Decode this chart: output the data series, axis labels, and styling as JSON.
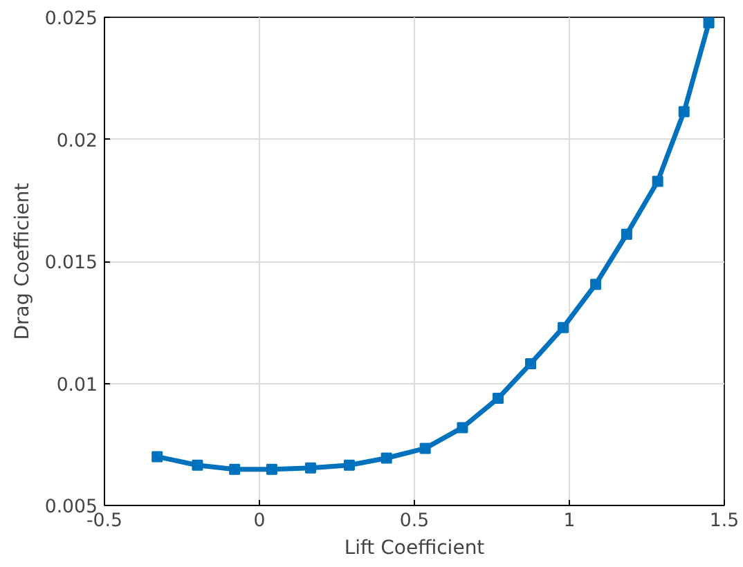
{
  "chart_data": {
    "type": "line",
    "xlabel": "Lift Coefficient",
    "ylabel": "Drag Coefficient",
    "x": [
      -0.33,
      -0.2,
      -0.08,
      0.04,
      0.165,
      0.29,
      0.41,
      0.535,
      0.655,
      0.77,
      0.875,
      0.98,
      1.085,
      1.185,
      1.285,
      1.37,
      1.45
    ],
    "series": [
      {
        "color": "#0072bd",
        "values": [
          0.007,
          0.00665,
          0.00648,
          0.00648,
          0.00654,
          0.00665,
          0.00694,
          0.00734,
          0.00819,
          0.00939,
          0.01081,
          0.01229,
          0.01406,
          0.01611,
          0.01828,
          0.02113,
          0.02477
        ]
      }
    ],
    "xlim": [
      -0.5,
      1.5
    ],
    "ylim": [
      0.005,
      0.025
    ],
    "xticks": [
      -0.5,
      0,
      0.5,
      1,
      1.5
    ],
    "yticks": [
      0.005,
      0.01,
      0.015,
      0.02,
      0.025
    ],
    "grid": true,
    "marker": "square",
    "line_style": "solid"
  }
}
